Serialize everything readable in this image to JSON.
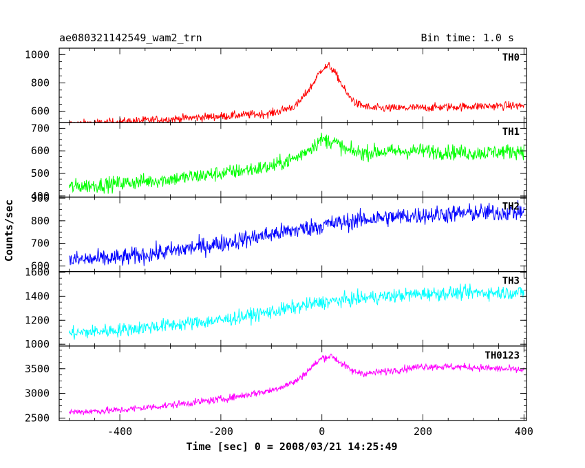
{
  "header": {
    "title": "ae080321142549_wam2_trn",
    "bin_time": "Bin time: 1.0 s"
  },
  "chart_data": {
    "type": "line",
    "xlabel": "Time [sec] 0 = 2008/03/21 14:25:49",
    "ylabel": "Counts/sec",
    "xlim": [
      -520,
      405
    ],
    "x_ticks": [
      -400,
      -200,
      0,
      200,
      400
    ],
    "x_range_of_data": [
      -500,
      400
    ],
    "bin_time_s": 1.0,
    "panels": [
      {
        "name": "TH0",
        "color": "#ff0000",
        "ylim": [
          520,
          1045
        ],
        "y_ticks": [
          600,
          800,
          1000
        ],
        "keypoints": [
          [
            -500,
            510
          ],
          [
            -400,
            525
          ],
          [
            -300,
            545
          ],
          [
            -200,
            565
          ],
          [
            -100,
            585
          ],
          [
            -50,
            640
          ],
          [
            -20,
            780
          ],
          [
            0,
            900
          ],
          [
            15,
            920
          ],
          [
            30,
            850
          ],
          [
            50,
            720
          ],
          [
            70,
            650
          ],
          [
            100,
            620
          ],
          [
            200,
            625
          ],
          [
            300,
            635
          ],
          [
            400,
            640
          ]
        ],
        "noise": 28
      },
      {
        "name": "TH1",
        "color": "#00ff00",
        "ylim": [
          395,
          725
        ],
        "y_ticks": [
          400,
          500,
          600,
          700
        ],
        "keypoints": [
          [
            -500,
            440
          ],
          [
            -400,
            455
          ],
          [
            -300,
            475
          ],
          [
            -200,
            500
          ],
          [
            -100,
            530
          ],
          [
            -50,
            570
          ],
          [
            0,
            650
          ],
          [
            25,
            640
          ],
          [
            50,
            600
          ],
          [
            80,
            590
          ],
          [
            100,
            595
          ],
          [
            200,
            600
          ],
          [
            300,
            590
          ],
          [
            400,
            600
          ]
        ],
        "noise": 32
      },
      {
        "name": "TH2",
        "color": "#0000ff",
        "ylim": [
          575,
          905
        ],
        "y_ticks": [
          600,
          700,
          800,
          900
        ],
        "keypoints": [
          [
            -500,
            625
          ],
          [
            -400,
            635
          ],
          [
            -300,
            665
          ],
          [
            -200,
            700
          ],
          [
            -100,
            740
          ],
          [
            0,
            780
          ],
          [
            100,
            810
          ],
          [
            200,
            825
          ],
          [
            300,
            835
          ],
          [
            400,
            840
          ]
        ],
        "noise": 38
      },
      {
        "name": "TH3",
        "color": "#00ffff",
        "ylim": [
          985,
          1605
        ],
        "y_ticks": [
          1000,
          1200,
          1400,
          1600
        ],
        "keypoints": [
          [
            -500,
            1090
          ],
          [
            -400,
            1120
          ],
          [
            -300,
            1160
          ],
          [
            -200,
            1200
          ],
          [
            -100,
            1270
          ],
          [
            0,
            1350
          ],
          [
            100,
            1390
          ],
          [
            200,
            1420
          ],
          [
            300,
            1430
          ],
          [
            400,
            1430
          ]
        ],
        "noise": 55
      },
      {
        "name": "TH0123",
        "color": "#ff00ff",
        "ylim": [
          2450,
          3960
        ],
        "y_ticks": [
          2500,
          3000,
          3500
        ],
        "keypoints": [
          [
            -500,
            2620
          ],
          [
            -400,
            2660
          ],
          [
            -300,
            2760
          ],
          [
            -200,
            2880
          ],
          [
            -100,
            3060
          ],
          [
            -50,
            3250
          ],
          [
            0,
            3720
          ],
          [
            20,
            3760
          ],
          [
            40,
            3600
          ],
          [
            60,
            3450
          ],
          [
            90,
            3400
          ],
          [
            150,
            3480
          ],
          [
            200,
            3550
          ],
          [
            300,
            3530
          ],
          [
            400,
            3470
          ]
        ],
        "noise": 70
      }
    ]
  }
}
